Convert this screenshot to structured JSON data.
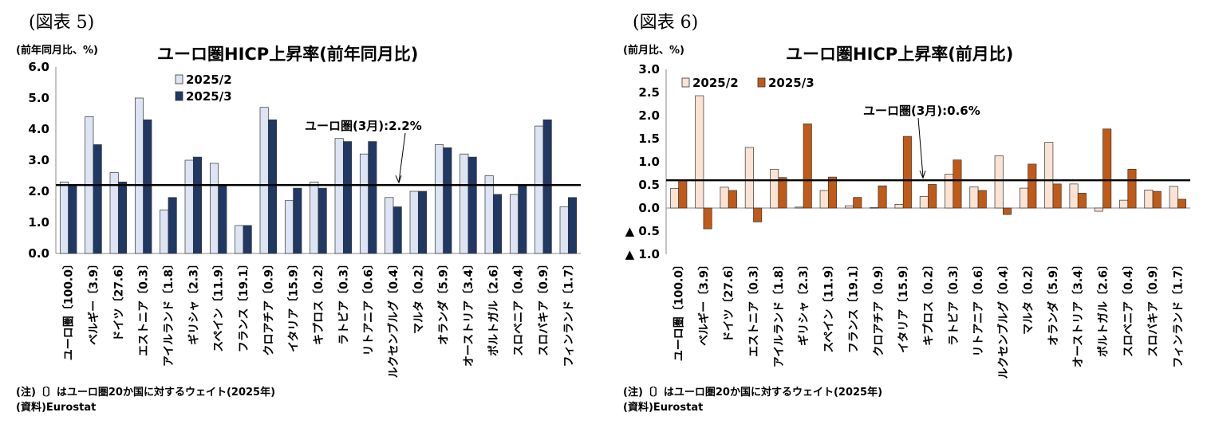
{
  "left": {
    "fig_label": "(図表 5)",
    "unit": "(前年同月比、%)",
    "note": "(注)〔〕はユーロ圏20か国に対するウェイト(2025年)",
    "source": "(資料)Eurostat"
  },
  "right": {
    "fig_label": "(図表 6)",
    "unit": "(前月比、%)",
    "note": "(注)〔〕はユーロ圏20か国に対するウェイト(2025年)",
    "source": "(資料)Eurostat"
  },
  "colors": {
    "left_2025_2": "#dde4f3",
    "left_2025_3": "#1f3864",
    "right_2025_2": "#fbe3d4",
    "right_2025_3": "#c05a16",
    "bar_outline": "#333333",
    "reference_line": "#000000"
  },
  "chart_data": [
    {
      "type": "bar",
      "title": "ユーロ圏HICP上昇率(前年同月比)",
      "categories": [
        "ユーロ圏〔100.0〕",
        "ベルギー〔3.9〕",
        "ドイツ〔27.6〕",
        "エストニア〔0.3〕",
        "アイルランド〔1.8〕",
        "ギリシャ〔2.3〕",
        "スペイン〔11.9〕",
        "フランス〔19.1〕",
        "クロアチア〔0.9〕",
        "イタリア〔15.9〕",
        "キプロス〔0.2〕",
        "ラトビア〔0.3〕",
        "リトアニア〔0.6〕",
        "ルクセンブルグ〔0.4〕",
        "マルタ〔0.2〕",
        "オランダ〔5.9〕",
        "オーストリア〔3.4〕",
        "ポルトガル〔2.6〕",
        "スロベニア〔0.4〕",
        "スロバキア〔0.9〕",
        "フィンランド〔1.7〕"
      ],
      "series": [
        {
          "name": "2025/2",
          "values": [
            2.3,
            4.4,
            2.6,
            5.0,
            1.4,
            3.0,
            2.9,
            0.9,
            4.7,
            1.7,
            2.3,
            3.7,
            3.2,
            1.8,
            2.0,
            3.5,
            3.2,
            2.5,
            1.9,
            4.1,
            1.5
          ]
        },
        {
          "name": "2025/3",
          "values": [
            2.2,
            3.5,
            2.3,
            4.3,
            1.8,
            3.1,
            2.2,
            0.9,
            4.3,
            2.1,
            2.1,
            3.6,
            3.6,
            1.5,
            2.0,
            3.4,
            3.1,
            1.9,
            2.2,
            4.3,
            1.8
          ]
        }
      ],
      "ylim": [
        0,
        6.0
      ],
      "yticks": [
        0.0,
        1.0,
        2.0,
        3.0,
        4.0,
        5.0,
        6.0
      ],
      "ytick_labels": [
        "0.0",
        "1.0",
        "2.0",
        "3.0",
        "4.0",
        "5.0",
        "6.0"
      ],
      "reference_line": {
        "value": 2.2,
        "label": "ユーロ圏(3月):2.2%"
      },
      "legend_position": "top-left"
    },
    {
      "type": "bar",
      "title": "ユーロ圏HICP上昇率(前月比)",
      "categories": [
        "ユーロ圏〔100.0〕",
        "ベルギー〔3.9〕",
        "ドイツ〔27.6〕",
        "エストニア〔0.3〕",
        "アイルランド〔1.8〕",
        "ギリシャ〔2.3〕",
        "スペイン〔11.9〕",
        "フランス〔19.1〕",
        "クロアチア〔0.9〕",
        "イタリア〔15.9〕",
        "キプロス〔0.2〕",
        "ラトビア〔0.3〕",
        "リトアニア〔0.6〕",
        "ルクセンブルグ〔0.4〕",
        "マルタ〔0.2〕",
        "オランダ〔5.9〕",
        "オーストリア〔3.4〕",
        "ポルトガル〔2.6〕",
        "スロベニア〔0.4〕",
        "スロバキア〔0.9〕",
        "フィンランド〔1.7〕"
      ],
      "series": [
        {
          "name": "2025/2",
          "values": [
            0.42,
            2.43,
            0.45,
            1.31,
            0.84,
            0.02,
            0.38,
            0.05,
            0.01,
            0.08,
            0.25,
            0.73,
            0.46,
            1.13,
            0.43,
            1.42,
            0.52,
            -0.07,
            0.17,
            0.39,
            0.47
          ]
        },
        {
          "name": "2025/3",
          "values": [
            0.6,
            -0.45,
            0.38,
            -0.3,
            0.66,
            1.82,
            0.67,
            0.23,
            0.48,
            1.55,
            0.51,
            1.04,
            0.38,
            -0.14,
            0.95,
            0.52,
            0.32,
            1.71,
            0.84,
            0.36,
            0.19
          ]
        }
      ],
      "ylim": [
        -1.0,
        3.0
      ],
      "yticks": [
        -1.0,
        -0.5,
        0.0,
        0.5,
        1.0,
        1.5,
        2.0,
        2.5,
        3.0
      ],
      "ytick_labels": [
        "▲ 1.0",
        "▲ 0.5",
        "0.0",
        "0.5",
        "1.0",
        "1.5",
        "2.0",
        "2.5",
        "3.0"
      ],
      "reference_line": {
        "value": 0.6,
        "label": "ユーロ圏(3月):0.6%"
      },
      "legend_position": "top-left"
    }
  ]
}
